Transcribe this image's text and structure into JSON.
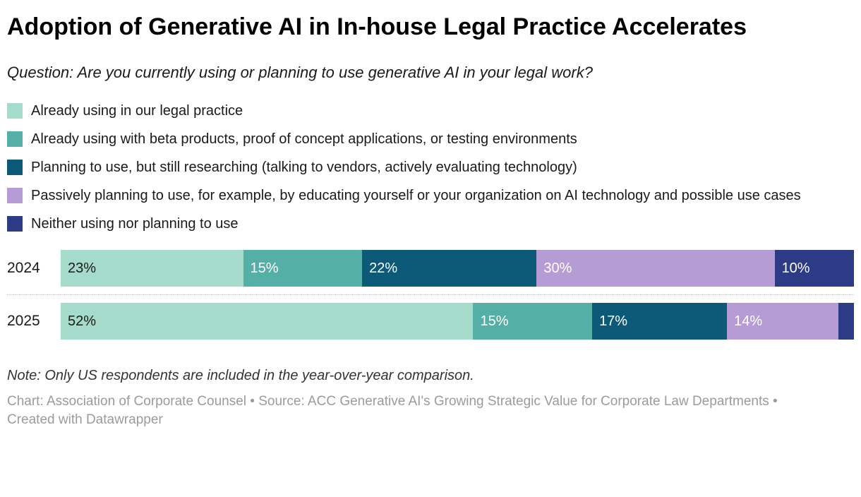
{
  "header": {
    "title": "Adoption of Generative AI in In-house Legal Practice Accelerates",
    "subtitle": "Question: Are you currently using or planning to use generative AI in your legal work?"
  },
  "chart_data": {
    "type": "bar",
    "variant": "stacked-horizontal",
    "categories": [
      "2024",
      "2025"
    ],
    "series": [
      {
        "name": "Already using in our legal practice",
        "color": "#a5dbca",
        "label_color": "#1a1a1a",
        "values": [
          23,
          52
        ]
      },
      {
        "name": "Already using with beta products, proof of concept applications, or testing environments",
        "color": "#54b0a6",
        "label_color": "#ffffff",
        "values": [
          15,
          15
        ]
      },
      {
        "name": "Planning to use, but still researching (talking to vendors, actively evaluating technology)",
        "color": "#0d5a78",
        "label_color": "#ffffff",
        "values": [
          22,
          17
        ]
      },
      {
        "name": "Passively planning to use, for example, by educating yourself or your organization on AI technology and possible use cases",
        "color": "#b69cd4",
        "label_color": "#ffffff",
        "values": [
          30,
          14
        ]
      },
      {
        "name": "Neither using nor planning to use",
        "color": "#2d3a85",
        "label_color": "#ffffff",
        "values": [
          10,
          2
        ]
      }
    ],
    "value_suffix": "%",
    "label_min_value": 5,
    "xlim": [
      0,
      100
    ],
    "legend_position": "top",
    "grid": false
  },
  "notes": {
    "note": "Note: Only US respondents are included in the year-over-year comparison.",
    "source": "Chart: Association of Corporate Counsel • Source: ACC Generative AI's Growing Strategic Value for Corporate Law Departments • Created with Datawrapper"
  }
}
